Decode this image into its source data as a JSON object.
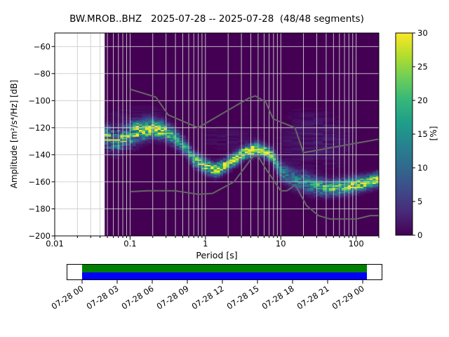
{
  "title": "BW.MROB..BHZ   2025-07-28 -- 2025-07-28  (48/48 segments)",
  "station": "BW.MROB..BHZ",
  "date_range": "2025-07-28 -- 2025-07-28",
  "segments": "48/48 segments",
  "axes": {
    "x_label": "Period [s]",
    "y_label": "Amplitude [m²/s⁴/Hz] [dB]",
    "x_ticks": [
      0.01,
      0.1,
      1,
      10,
      100
    ],
    "x_tick_labels": [
      "0.01",
      "0.1",
      "1",
      "10",
      "100"
    ],
    "x_range": [
      0.01,
      200
    ],
    "y_ticks": [
      -60,
      -80,
      -100,
      -120,
      -140,
      -160,
      -180,
      -200
    ],
    "y_tick_labels": [
      "−60",
      "−80",
      "−100",
      "−120",
      "−140",
      "−160",
      "−180",
      "−200"
    ],
    "y_range": [
      -200,
      -50
    ]
  },
  "colorbar": {
    "label": "[%]",
    "ticks": [
      0,
      5,
      10,
      15,
      20,
      25,
      30
    ],
    "tick_labels": [
      "0",
      "5",
      "10",
      "15",
      "20",
      "25",
      "30"
    ],
    "range": [
      0,
      30
    ],
    "colormap": "viridis"
  },
  "chart_data": {
    "type": "heatmap",
    "title": "BW.MROB..BHZ   2025-07-28 -- 2025-07-28  (48/48 segments)",
    "xlabel": "Period [s]",
    "ylabel": "Amplitude [m²/s⁴/Hz] [dB]",
    "xscale": "log",
    "xlim": [
      0.01,
      200
    ],
    "ylim": [
      -200,
      -50
    ],
    "colorbar_range_pct": [
      0,
      30
    ],
    "data_period_range": [
      0.046,
      200
    ],
    "pdf_mode_curve": [
      {
        "period": 0.046,
        "db": -126,
        "peak_pct": 16,
        "spread_db": 5
      },
      {
        "period": 0.065,
        "db": -130,
        "peak_pct": 15,
        "spread_db": 5
      },
      {
        "period": 0.1,
        "db": -125,
        "peak_pct": 18,
        "spread_db": 5
      },
      {
        "period": 0.14,
        "db": -122.5,
        "peak_pct": 24,
        "spread_db": 4.5
      },
      {
        "period": 0.2,
        "db": -120.5,
        "peak_pct": 28,
        "spread_db": 4
      },
      {
        "period": 0.28,
        "db": -122,
        "peak_pct": 24,
        "spread_db": 4
      },
      {
        "period": 0.4,
        "db": -127,
        "peak_pct": 16,
        "spread_db": 4
      },
      {
        "period": 0.55,
        "db": -135,
        "peak_pct": 16,
        "spread_db": 3.5
      },
      {
        "period": 0.7,
        "db": -143,
        "peak_pct": 18,
        "spread_db": 3.5
      },
      {
        "period": 1.0,
        "db": -148.5,
        "peak_pct": 26,
        "spread_db": 3
      },
      {
        "period": 1.35,
        "db": -151,
        "peak_pct": 30,
        "spread_db": 3
      },
      {
        "period": 1.7,
        "db": -149,
        "peak_pct": 26,
        "spread_db": 3
      },
      {
        "period": 2.2,
        "db": -145,
        "peak_pct": 26,
        "spread_db": 3
      },
      {
        "period": 3.4,
        "db": -138,
        "peak_pct": 30,
        "spread_db": 2.8
      },
      {
        "period": 4.7,
        "db": -135.5,
        "peak_pct": 30,
        "spread_db": 2.8
      },
      {
        "period": 6.0,
        "db": -137.5,
        "peak_pct": 28,
        "spread_db": 3
      },
      {
        "period": 7.5,
        "db": -140,
        "peak_pct": 22,
        "spread_db": 3
      },
      {
        "period": 10.0,
        "db": -152,
        "peak_pct": 14,
        "spread_db": 4
      },
      {
        "period": 14.0,
        "db": -157,
        "peak_pct": 12,
        "spread_db": 4.5
      },
      {
        "period": 20.0,
        "db": -160,
        "peak_pct": 13,
        "spread_db": 4.5
      },
      {
        "period": 30.0,
        "db": -163,
        "peak_pct": 17,
        "spread_db": 4
      },
      {
        "period": 45.0,
        "db": -164.5,
        "peak_pct": 21,
        "spread_db": 3.5
      },
      {
        "period": 70.0,
        "db": -163.5,
        "peak_pct": 23,
        "spread_db": 3.5
      },
      {
        "period": 100.0,
        "db": -162,
        "peak_pct": 25,
        "spread_db": 3.5
      },
      {
        "period": 140.0,
        "db": -160.5,
        "peak_pct": 27,
        "spread_db": 3
      },
      {
        "period": 200.0,
        "db": -158,
        "peak_pct": 30,
        "spread_db": 3
      }
    ],
    "faint_clouds": [
      {
        "p_min": 0.046,
        "p_max": 0.32,
        "center_db": -112,
        "sigma_db": 6,
        "peak_pct": 1.3
      },
      {
        "p_min": 0.7,
        "p_max": 7.0,
        "center_db": -128,
        "sigma_db": 6,
        "peak_pct": 1.2
      },
      {
        "p_min": 7.0,
        "p_max": 110,
        "center_db": -131,
        "sigma_db": 11,
        "peak_pct": 2.0
      },
      {
        "p_min": 12.0,
        "p_max": 48,
        "center_db": -114,
        "sigma_db": 5,
        "peak_pct": 1.0
      }
    ],
    "noise_models": {
      "high_model": [
        [
          0.1,
          -91.5
        ],
        [
          0.22,
          -97.4
        ],
        [
          0.32,
          -110.5
        ],
        [
          0.8,
          -120.0
        ],
        [
          3.8,
          -98.0
        ],
        [
          4.6,
          -96.5
        ],
        [
          6.3,
          -101.0
        ],
        [
          7.9,
          -113.5
        ],
        [
          15.4,
          -120.0
        ],
        [
          20.0,
          -138.5
        ],
        [
          200.0,
          -128.5
        ]
      ],
      "low_model": [
        [
          0.1,
          -167.3
        ],
        [
          0.17,
          -166.7
        ],
        [
          0.4,
          -166.7
        ],
        [
          0.8,
          -169.2
        ],
        [
          1.24,
          -168.6
        ],
        [
          2.4,
          -160.0
        ],
        [
          4.3,
          -141.1
        ],
        [
          5.0,
          -141.1
        ],
        [
          6.0,
          -148.5
        ],
        [
          10.0,
          -166.7
        ],
        [
          12.0,
          -166.7
        ],
        [
          15.6,
          -162.4
        ],
        [
          21.9,
          -177.5
        ],
        [
          31.6,
          -185.0
        ],
        [
          45.0,
          -187.5
        ],
        [
          101.0,
          -187.5
        ],
        [
          154.0,
          -185.0
        ],
        [
          200.0,
          -185.0
        ]
      ]
    }
  },
  "timeline": {
    "tick_labels": [
      "07-28 00",
      "07-28 03",
      "07-28 06",
      "07-28 09",
      "07-28 12",
      "07-28 15",
      "07-28 18",
      "07-28 21",
      "07-29 00"
    ],
    "top_color": "#008000",
    "bottom_color": "#0000ff",
    "border_color": "#000000"
  },
  "colors": {
    "figure_bg": "#ffffff",
    "heatmap_bg": "#440154",
    "grid": "#cccccc",
    "noise_model_line": "#666666",
    "spine": "#000000",
    "cmap_low": "#440154",
    "cmap_mid": "#21918c",
    "cmap_high": "#fde725"
  }
}
